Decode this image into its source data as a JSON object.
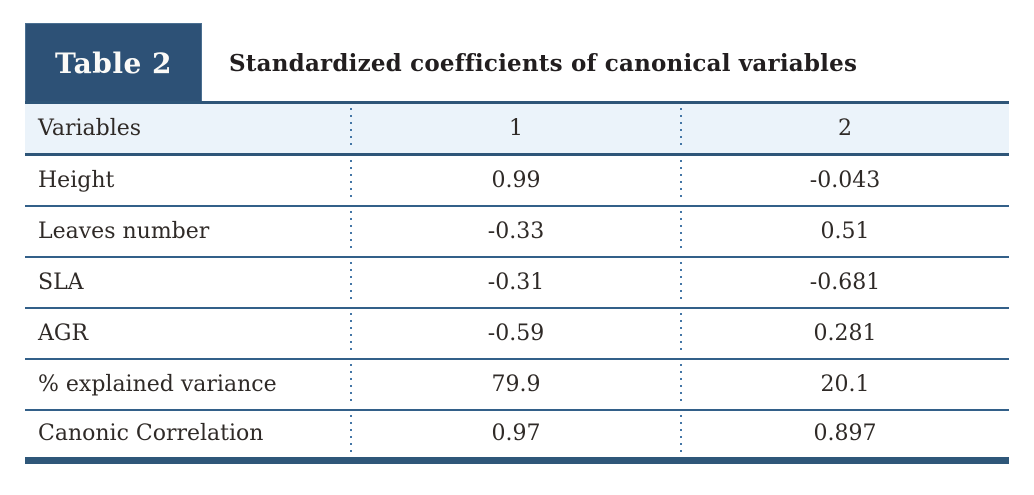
{
  "badge": {
    "label": "Table 2"
  },
  "header": {
    "title": "Standardized coefficients of canonical variables"
  },
  "table": {
    "columns": [
      "Variables",
      "1",
      "2"
    ],
    "rows": [
      {
        "label": "Height",
        "v1": "0.99",
        "v2": "-0.043"
      },
      {
        "label": "Leaves number",
        "v1": "-0.33",
        "v2": "0.51"
      },
      {
        "label": "SLA",
        "v1": "-0.31",
        "v2": "-0.681"
      },
      {
        "label": "AGR",
        "v1": "-0.59",
        "v2": "0.281"
      },
      {
        "label": "% explained variance",
        "v1": "79.9",
        "v2": "20.1"
      },
      {
        "label": "Canonic Correlation",
        "v1": "0.97",
        "v2": "0.897"
      }
    ]
  },
  "colors": {
    "accent_navy": "#2d5176",
    "rule_navy": "#2e5578",
    "header_row_bg": "#ebf3fa",
    "dotted_separator": "#4476a6",
    "title_text": "#221e1f",
    "cell_text": "#2f2a27",
    "badge_text": "#fbfaf7"
  },
  "chart_data": {
    "type": "table",
    "table_label": "Table 2",
    "title": "Standardized coefficients of canonical variables",
    "columns": [
      "Variables",
      "1",
      "2"
    ],
    "rows": [
      [
        "Height",
        0.99,
        -0.043
      ],
      [
        "Leaves number",
        -0.33,
        0.51
      ],
      [
        "SLA",
        -0.31,
        -0.681
      ],
      [
        "AGR",
        -0.59,
        0.281
      ],
      [
        "% explained variance",
        79.9,
        20.1
      ],
      [
        "Canonic Correlation",
        0.97,
        0.897
      ]
    ],
    "layout": {
      "header_background": "#ebf3fa",
      "column_separators": "dotted",
      "row_separators": "solid",
      "numeric_alignment": "center"
    }
  }
}
